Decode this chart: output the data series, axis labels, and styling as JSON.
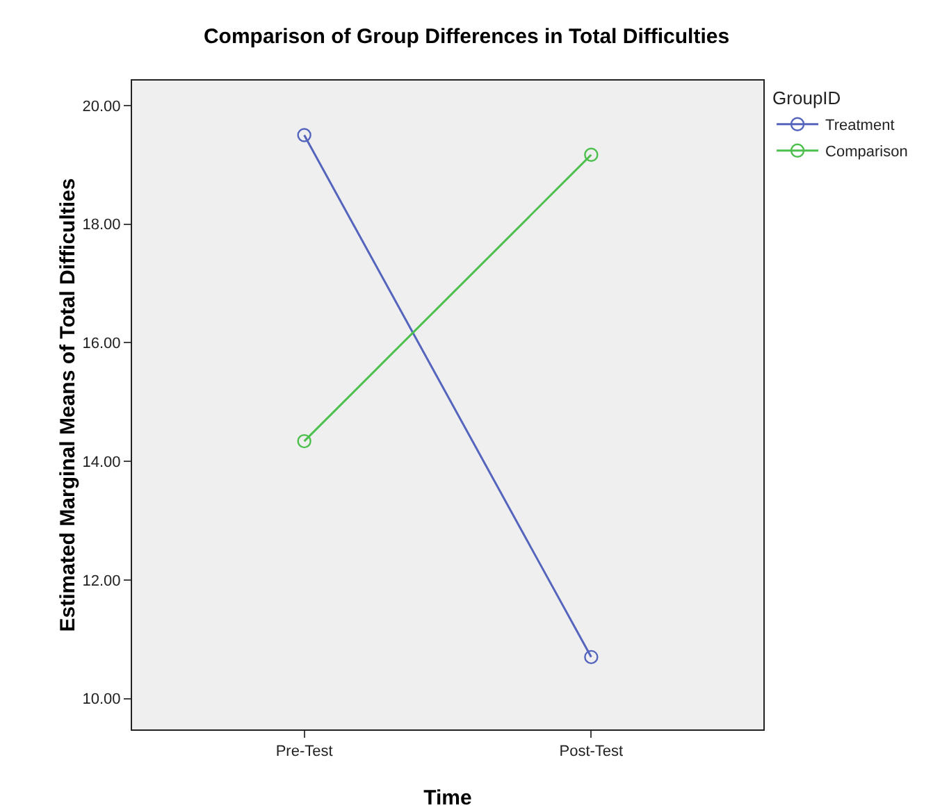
{
  "chart_data": {
    "type": "line",
    "title": "Comparison of Group Differences in Total Difficulties",
    "xlabel": "Time",
    "ylabel": "Estimated Marginal Means of Total Difficulties",
    "legend_title": "GroupID",
    "categories": [
      "Pre-Test",
      "Post-Test"
    ],
    "series": [
      {
        "name": "Treatment",
        "color": "#5565bd",
        "values": [
          19.5,
          10.7
        ]
      },
      {
        "name": "Comparison",
        "color": "#4cbf4c",
        "values": [
          14.34,
          19.17
        ]
      }
    ],
    "ylim": [
      9.48,
      20.42
    ],
    "yticks": [
      {
        "value": 10,
        "label": "10.00"
      },
      {
        "value": 12,
        "label": "12.00"
      },
      {
        "value": 14,
        "label": "14.00"
      },
      {
        "value": 16,
        "label": "16.00"
      },
      {
        "value": 18,
        "label": "18.00"
      },
      {
        "value": 20,
        "label": "20.00"
      }
    ],
    "grid": false,
    "legend": "top right",
    "marker": "circle",
    "line_style": "solid"
  }
}
